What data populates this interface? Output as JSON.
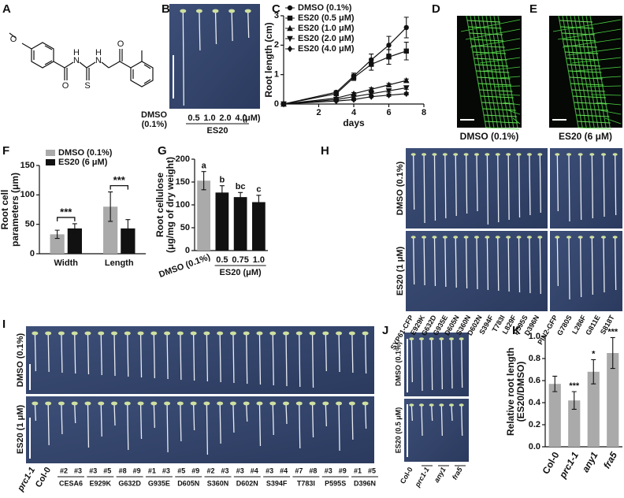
{
  "figure": {
    "panel_letters": [
      "A",
      "B",
      "C",
      "D",
      "E",
      "F",
      "G",
      "H",
      "I",
      "J",
      "K"
    ],
    "molecule": {
      "atoms": [
        "O",
        "O",
        "N",
        "H",
        "N",
        "H",
        "S",
        "O"
      ]
    },
    "B": {
      "control": [
        "DMSO",
        "(0.1%)"
      ],
      "doses": [
        "0.5",
        "1.0",
        "2.0",
        "4.0"
      ],
      "unit": "(μM)",
      "group": "ES20"
    },
    "D": {
      "label": "DMSO (0.1%)"
    },
    "E": {
      "label": "ES20 (6 μM)"
    },
    "H": {
      "rows": [
        "DMSO (0.1%)",
        "ES20 (1 μM)"
      ],
      "lines": [
        "SYP61-CFP",
        "E929K",
        "G632D",
        "G935E",
        "D605N",
        "S360N",
        "D602N",
        "S394F",
        "T783I",
        "L829F",
        "P595S",
        "D396N",
        "PIN2-GFP",
        "G780S",
        "L286F",
        "G811E",
        "S818T"
      ]
    },
    "I": {
      "rows": [
        "DMSO (0.1%)",
        "ES20 (1 μM)"
      ],
      "singles": [
        "prc1-1",
        "Col-0"
      ],
      "groups": [
        {
          "name": "CESA6",
          "lines": [
            "#2",
            "#3"
          ]
        },
        {
          "name": "E929K",
          "lines": [
            "#3",
            "#5"
          ]
        },
        {
          "name": "G632D",
          "lines": [
            "#8",
            "#9"
          ]
        },
        {
          "name": "G935E",
          "lines": [
            "#1",
            "#3"
          ]
        },
        {
          "name": "D605N",
          "lines": [
            "#5",
            "#9"
          ]
        },
        {
          "name": "S360N",
          "lines": [
            "#2",
            "#3"
          ]
        },
        {
          "name": "D602N",
          "lines": [
            "#3",
            "#4"
          ]
        },
        {
          "name": "S394F",
          "lines": [
            "#3",
            "#4"
          ]
        },
        {
          "name": "T783I",
          "lines": [
            "#7",
            "#8"
          ]
        },
        {
          "name": "P595S",
          "lines": [
            "#3",
            "#9"
          ]
        },
        {
          "name": "D396N",
          "lines": [
            "#1",
            "#5"
          ]
        }
      ]
    },
    "J": {
      "rows": [
        "DMSO (0.1%)",
        "ES20 (0.5 μM)"
      ],
      "lines": [
        "Col-0",
        "prc1-1",
        "any1",
        "fra5"
      ]
    }
  },
  "chart_data": [
    {
      "type": "line",
      "xlabel": "days",
      "ylabel": [
        "Root length (cm)"
      ],
      "x": [
        0,
        3,
        4,
        5,
        6,
        7
      ],
      "xlim": [
        0,
        8
      ],
      "xticks": [
        2,
        4,
        6,
        8
      ],
      "ylim": [
        0,
        3
      ],
      "yticks": [
        0,
        1,
        2,
        3
      ],
      "legend": "upper left",
      "series": [
        {
          "name": "DMSO (0.1%)",
          "color": "#111111",
          "marker": "circle",
          "values": [
            0,
            0.4,
            0.95,
            1.5,
            2.0,
            2.6
          ],
          "errors": [
            0,
            0.05,
            0.1,
            0.2,
            0.3,
            0.35
          ]
        },
        {
          "name": "ES20 (0.5 μM)",
          "color": "#111111",
          "marker": "square",
          "values": [
            0,
            0.35,
            0.9,
            1.35,
            1.6,
            1.8
          ],
          "errors": [
            0,
            0.05,
            0.1,
            0.2,
            0.25,
            0.3
          ]
        },
        {
          "name": "ES20 (1.0 μM)",
          "color": "#111111",
          "marker": "triangle",
          "values": [
            0,
            0.2,
            0.35,
            0.5,
            0.65,
            0.8
          ],
          "errors": [
            0,
            0.03,
            0.04,
            0.05,
            0.05,
            0.05
          ]
        },
        {
          "name": "ES20 (2.0 μM)",
          "color": "#111111",
          "marker": "triangle-down",
          "values": [
            0,
            0.15,
            0.25,
            0.35,
            0.45,
            0.55
          ],
          "errors": [
            0,
            0.03,
            0.04,
            0.04,
            0.05,
            0.05
          ]
        },
        {
          "name": "ES20 (4.0 μM)",
          "color": "#111111",
          "marker": "diamond",
          "values": [
            0,
            0.1,
            0.15,
            0.25,
            0.3,
            0.35
          ],
          "errors": [
            0,
            0.02,
            0.03,
            0.03,
            0.04,
            0.04
          ]
        }
      ]
    },
    {
      "type": "bar",
      "ylabel": [
        "Root cell",
        "parameters (μm)"
      ],
      "categories": [
        "Width",
        "Length"
      ],
      "ylim": [
        0,
        150
      ],
      "yticks": [
        0,
        50,
        100,
        150
      ],
      "legend": "upper left",
      "series": [
        {
          "name": "DMSO (0.1%)",
          "color": "#aaaaaa",
          "values": [
            33,
            80
          ],
          "errors": [
            7,
            25
          ]
        },
        {
          "name": "ES20 (6 μM)",
          "color": "#111111",
          "values": [
            43,
            43
          ],
          "errors": [
            8,
            15
          ]
        }
      ],
      "annotations": [
        "***",
        "***"
      ]
    },
    {
      "type": "bar",
      "ylabel": [
        "Root cellulose",
        "(μg/mg of dry weight)"
      ],
      "categories": [
        "DMSO (0.1%)",
        "0.5",
        "0.75",
        "1.0"
      ],
      "group_label": "ES20 (μM)",
      "ylim": [
        0,
        200
      ],
      "yticks": [
        0,
        50,
        100,
        150,
        200
      ],
      "values": [
        153,
        127,
        117,
        106
      ],
      "errors": [
        20,
        15,
        10,
        15
      ],
      "colors": [
        "#aaaaaa",
        "#111111",
        "#111111",
        "#111111"
      ],
      "annotations": [
        "a",
        "b",
        "bc",
        "c"
      ]
    },
    {
      "type": "bar",
      "ylabel": [
        "Relative root length",
        "(ES20/DMSO)"
      ],
      "categories": [
        "Col-0",
        "prc1-1",
        "any1",
        "fra5"
      ],
      "italic": [
        false,
        true,
        true,
        true
      ],
      "ylim": [
        0,
        1
      ],
      "yticks": [
        {
          "value": 0,
          "label": "0.0"
        },
        {
          "value": 0.2,
          "label": "0.2"
        },
        {
          "value": 0.4,
          "label": "0.4"
        },
        {
          "value": 0.6,
          "label": "0.6"
        },
        {
          "value": 0.8,
          "label": "0.8"
        },
        {
          "value": 1,
          "label": "1.0"
        }
      ],
      "values": [
        0.57,
        0.42,
        0.68,
        0.85
      ],
      "errors": [
        0.07,
        0.08,
        0.11,
        0.14
      ],
      "colors": [
        "#aaaaaa",
        "#aaaaaa",
        "#aaaaaa",
        "#aaaaaa"
      ],
      "annotations": [
        null,
        "***",
        "*",
        "***"
      ]
    }
  ]
}
